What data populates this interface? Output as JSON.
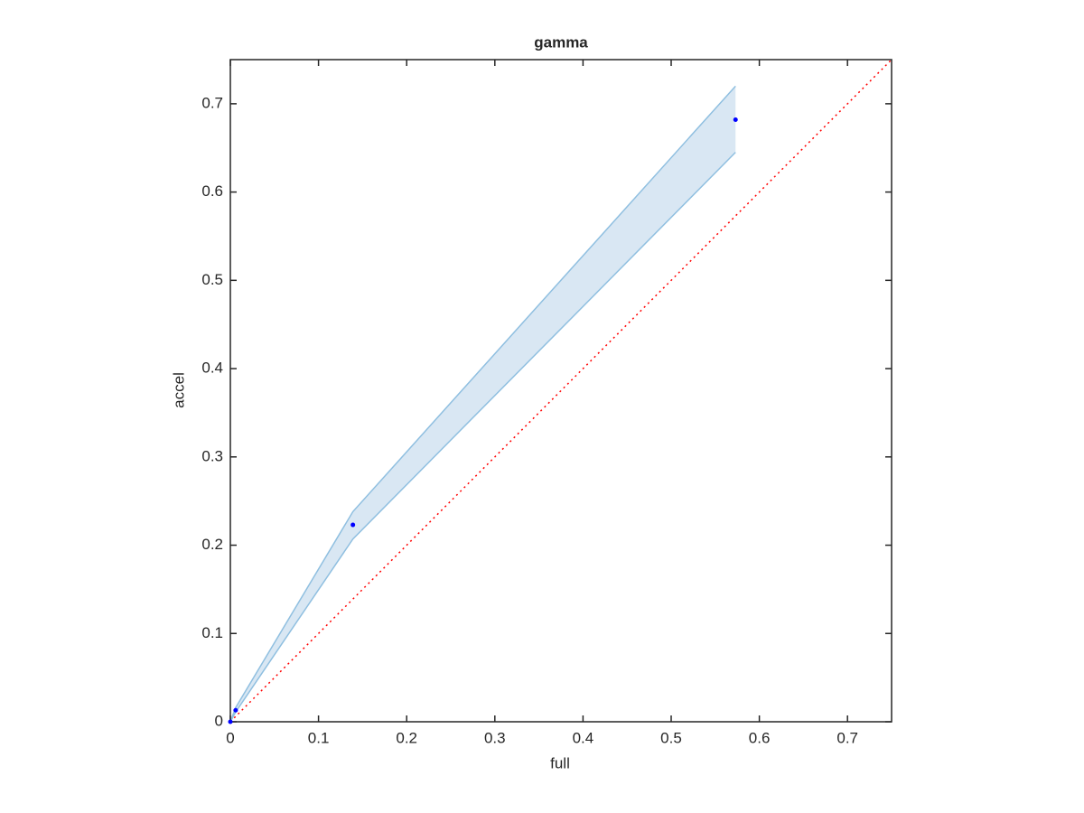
{
  "chart_data": {
    "type": "scatter",
    "title": "gamma",
    "x_label": "full",
    "y_label": "accel",
    "xlim": [
      0,
      0.75
    ],
    "ylim": [
      0,
      0.75
    ],
    "xticks": [
      0,
      0.1,
      0.2,
      0.3,
      0.4,
      0.5,
      0.6,
      0.7
    ],
    "yticks": [
      0,
      0.1,
      0.2,
      0.3,
      0.4,
      0.5,
      0.6,
      0.7
    ],
    "series": [
      {
        "color": "#0000ff",
        "x": [
          0,
          0.006,
          0.139,
          0.573
        ],
        "values": [
          0,
          0.013,
          0.223,
          0.682
        ]
      }
    ],
    "band": {
      "x": [
        0,
        0.006,
        0.139,
        0.573
      ],
      "lower": [
        0,
        0.011,
        0.207,
        0.645
      ],
      "upper": [
        0,
        0.016,
        0.238,
        0.72
      ],
      "color": "#d9e7f3",
      "edge_color": "#8fbfe0"
    },
    "diagonal": {
      "x": [
        0,
        0.75
      ],
      "y": [
        0,
        0.75
      ],
      "color": "#ff0000"
    }
  }
}
